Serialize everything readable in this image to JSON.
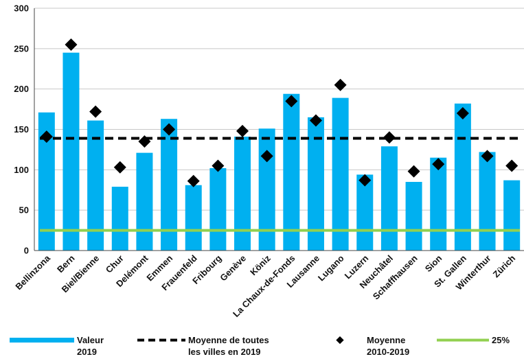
{
  "chart_data": {
    "type": "bar",
    "title": "",
    "xlabel": "",
    "ylabel": "",
    "ylim": [
      0,
      300
    ],
    "yticks": [
      0,
      50,
      100,
      150,
      200,
      250,
      300
    ],
    "grid": "horizontal",
    "legend_placement": "bottom",
    "categories": [
      "Bellinzona",
      "Bern",
      "Biel/Bienne",
      "Chur",
      "Delémont",
      "Emmen",
      "Frauenfeld",
      "Fribourg",
      "Genève",
      "Köniz",
      "La Chaux-de-Fonds",
      "Lausanne",
      "Lugano",
      "Luzern",
      "Neuchâtel",
      "Schaffhausen",
      "Sion",
      "St. Gallen",
      "Winterthur",
      "Zürich"
    ],
    "series": [
      {
        "name": "Valeur 2019",
        "kind": "bar",
        "color": "#00b0f0",
        "values": [
          171,
          245,
          161,
          79,
          121,
          163,
          81,
          102,
          141,
          151,
          194,
          165,
          189,
          94,
          129,
          85,
          115,
          182,
          122,
          87
        ]
      },
      {
        "name": "Moyenne 2010-2019",
        "kind": "marker",
        "color": "#000000",
        "values": [
          141,
          255,
          172,
          103,
          135,
          150,
          86,
          105,
          148,
          117,
          185,
          161,
          205,
          87,
          140,
          98,
          107,
          170,
          117,
          105
        ]
      },
      {
        "name": "Moyenne de toutes les villes en 2019",
        "kind": "hline",
        "color": "#000000",
        "value": 139
      },
      {
        "name": "25%",
        "kind": "hline",
        "color": "#92d050",
        "value": 25
      }
    ]
  },
  "legend": [
    {
      "line1": "Valeur",
      "line2": "2019"
    },
    {
      "line1": "Moyenne de toutes",
      "line2": "les villes en 2019"
    },
    {
      "line1": "Moyenne",
      "line2": "2010-2019"
    },
    {
      "line1": "25%",
      "line2": ""
    }
  ]
}
